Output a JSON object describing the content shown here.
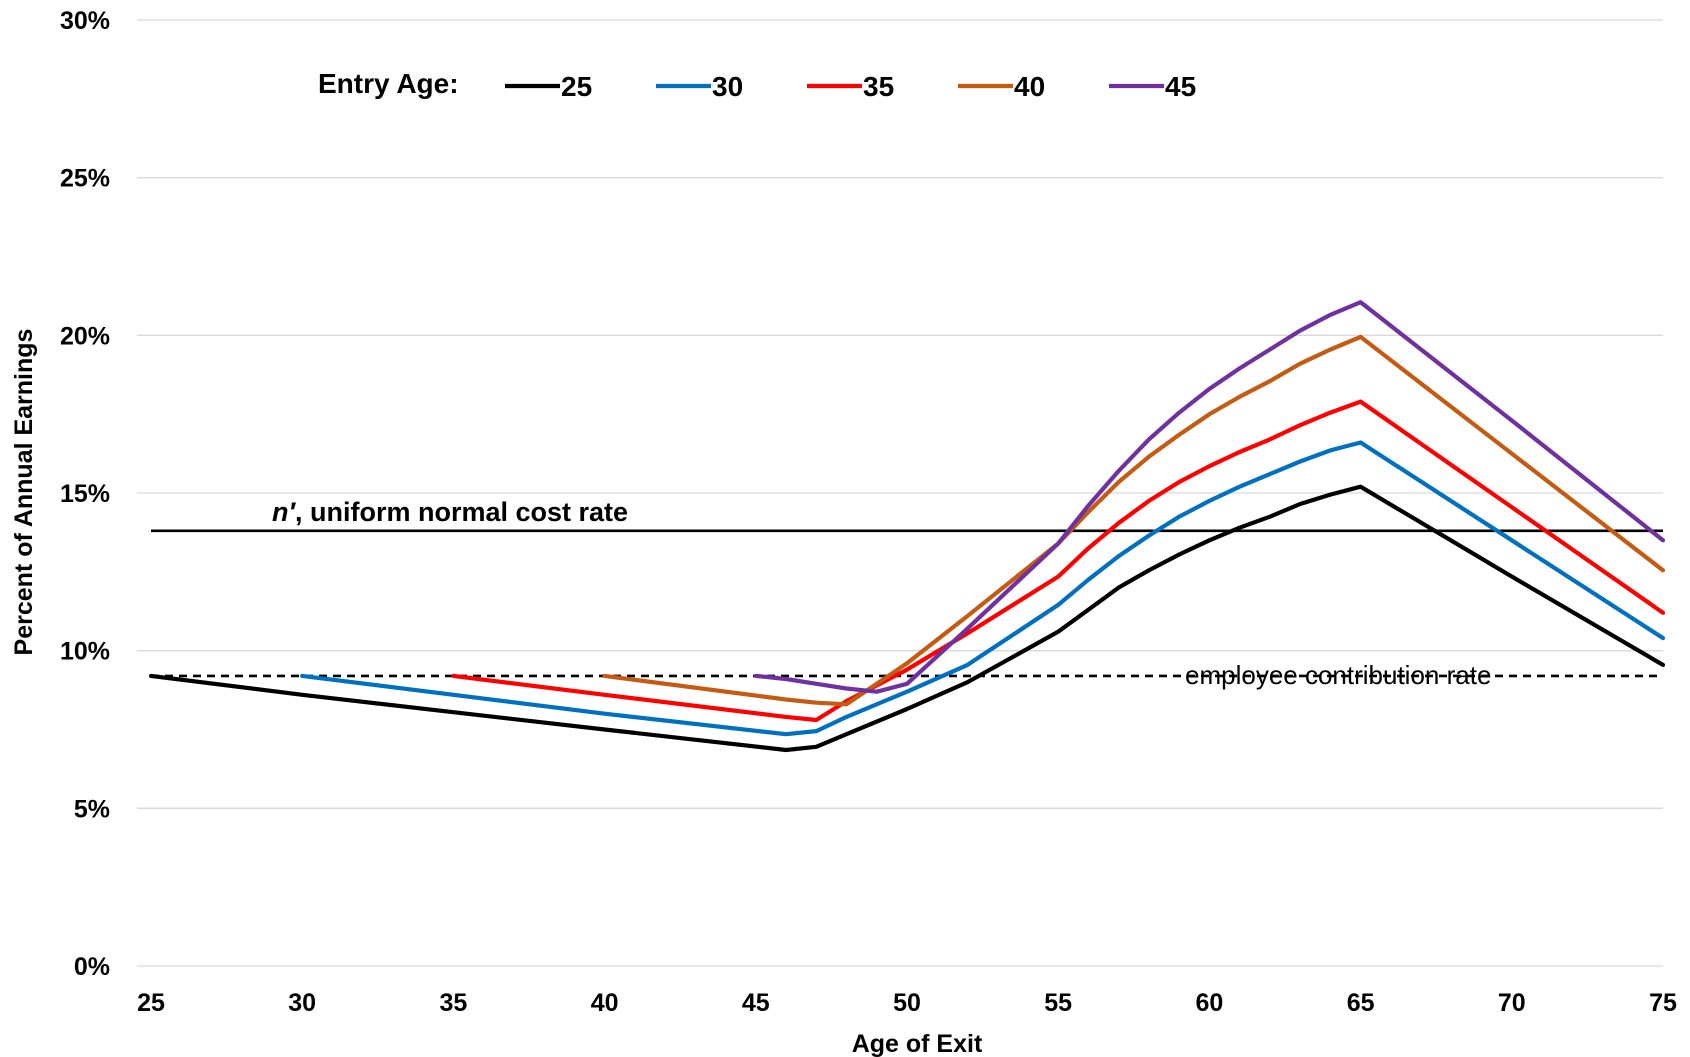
{
  "chart_data": {
    "type": "line",
    "xlabel": "Age of Exit",
    "ylabel": "Percent of Annual Earnings",
    "xlim": [
      25,
      75
    ],
    "ylim": [
      0,
      30
    ],
    "x_ticks": [
      "25",
      "30",
      "35",
      "40",
      "45",
      "50",
      "55",
      "60",
      "65",
      "70",
      "75"
    ],
    "y_ticks": [
      "0%",
      "5%",
      "10%",
      "15%",
      "20%",
      "25%",
      "30%"
    ],
    "grid": "horizontal",
    "legend": {
      "title": "Entry Age:",
      "placement": "top"
    },
    "series": [
      {
        "name": "25",
        "color": "#000000",
        "points": [
          [
            25,
            9.2
          ],
          [
            30,
            8.6
          ],
          [
            35,
            8.05
          ],
          [
            40,
            7.5
          ],
          [
            46,
            6.85
          ],
          [
            47,
            6.95
          ],
          [
            48,
            7.35
          ],
          [
            50,
            8.15
          ],
          [
            52,
            9.0
          ],
          [
            55,
            10.6
          ],
          [
            56,
            11.3
          ],
          [
            57,
            12.0
          ],
          [
            58,
            12.55
          ],
          [
            59,
            13.05
          ],
          [
            60,
            13.5
          ],
          [
            61,
            13.9
          ],
          [
            62,
            14.25
          ],
          [
            63,
            14.65
          ],
          [
            64,
            14.95
          ],
          [
            65,
            15.2
          ],
          [
            70,
            12.35
          ],
          [
            75,
            9.55
          ]
        ]
      },
      {
        "name": "30",
        "color": "#0070C0",
        "points": [
          [
            30,
            9.2
          ],
          [
            35,
            8.6
          ],
          [
            40,
            8.0
          ],
          [
            46,
            7.35
          ],
          [
            47,
            7.45
          ],
          [
            48,
            7.9
          ],
          [
            50,
            8.7
          ],
          [
            52,
            9.55
          ],
          [
            55,
            11.45
          ],
          [
            56,
            12.25
          ],
          [
            57,
            13.0
          ],
          [
            58,
            13.65
          ],
          [
            59,
            14.25
          ],
          [
            60,
            14.75
          ],
          [
            61,
            15.2
          ],
          [
            62,
            15.6
          ],
          [
            63,
            16.0
          ],
          [
            64,
            16.35
          ],
          [
            65,
            16.6
          ],
          [
            70,
            13.5
          ],
          [
            75,
            10.4
          ]
        ]
      },
      {
        "name": "35",
        "color": "#FF0000",
        "points": [
          [
            35,
            9.2
          ],
          [
            40,
            8.6
          ],
          [
            46,
            7.9
          ],
          [
            47,
            7.8
          ],
          [
            48,
            8.4
          ],
          [
            50,
            9.4
          ],
          [
            52,
            10.55
          ],
          [
            55,
            12.35
          ],
          [
            56,
            13.25
          ],
          [
            57,
            14.05
          ],
          [
            58,
            14.75
          ],
          [
            59,
            15.35
          ],
          [
            60,
            15.85
          ],
          [
            61,
            16.3
          ],
          [
            62,
            16.7
          ],
          [
            63,
            17.15
          ],
          [
            64,
            17.55
          ],
          [
            65,
            17.9
          ],
          [
            70,
            14.55
          ],
          [
            75,
            11.2
          ]
        ]
      },
      {
        "name": "40",
        "color": "#C55A11",
        "points": [
          [
            40,
            9.2
          ],
          [
            46,
            8.45
          ],
          [
            47,
            8.35
          ],
          [
            48,
            8.3
          ],
          [
            50,
            9.6
          ],
          [
            52,
            11.1
          ],
          [
            55,
            13.4
          ],
          [
            56,
            14.4
          ],
          [
            57,
            15.35
          ],
          [
            58,
            16.15
          ],
          [
            59,
            16.85
          ],
          [
            60,
            17.5
          ],
          [
            61,
            18.05
          ],
          [
            62,
            18.55
          ],
          [
            63,
            19.1
          ],
          [
            64,
            19.55
          ],
          [
            65,
            19.95
          ],
          [
            70,
            16.25
          ],
          [
            75,
            12.55
          ]
        ]
      },
      {
        "name": "45",
        "color": "#7030A0",
        "points": [
          [
            45,
            9.2
          ],
          [
            46,
            9.1
          ],
          [
            47,
            8.95
          ],
          [
            48,
            8.8
          ],
          [
            49,
            8.7
          ],
          [
            50,
            8.95
          ],
          [
            52,
            10.7
          ],
          [
            55,
            13.4
          ],
          [
            56,
            14.6
          ],
          [
            57,
            15.7
          ],
          [
            58,
            16.7
          ],
          [
            59,
            17.55
          ],
          [
            60,
            18.3
          ],
          [
            61,
            18.95
          ],
          [
            62,
            19.55
          ],
          [
            63,
            20.15
          ],
          [
            64,
            20.65
          ],
          [
            65,
            21.05
          ],
          [
            70,
            17.3
          ],
          [
            75,
            13.5
          ]
        ]
      }
    ],
    "reference_lines": [
      {
        "label": "n′, uniform normal cost rate",
        "label_em": "n′",
        "label_rest": ", uniform normal cost rate",
        "y": 13.8,
        "style": "solid",
        "color": "#000000"
      },
      {
        "label": "employee contribution rate",
        "y": 9.2,
        "style": "dashed",
        "color": "#000000"
      }
    ]
  }
}
